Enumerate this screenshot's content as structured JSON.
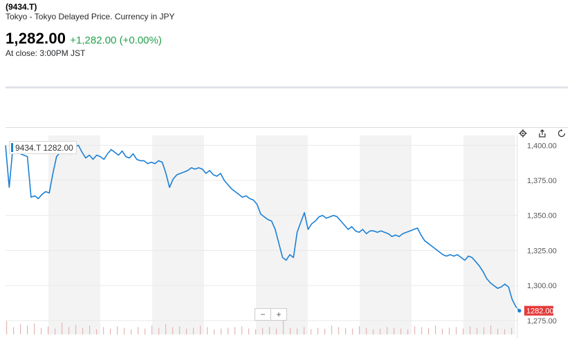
{
  "quote": {
    "ticker": "(9434.T)",
    "exchange_info": "Tokyo - Tokyo Delayed Price. Currency in JPY",
    "price": "1,282.00",
    "change": "+1,282.00 (+0.00%)",
    "close_time": "At close: 3:00PM JST"
  },
  "colors": {
    "line": "#1a7fd4",
    "change_positive": "#21a14a",
    "last_price_tag": "#e53b3b",
    "band": "#f3f3f3",
    "volume": "#e4b4b4"
  },
  "toolbar": {
    "icons": [
      "gear-icon",
      "share-icon",
      "reset-icon"
    ]
  },
  "zoom": {
    "minus": "−",
    "plus": "+"
  },
  "chart_data": {
    "type": "line",
    "series": [
      {
        "name": "9434.T",
        "legend_label": "9434.T 1282.00",
        "values": [
          1400,
          1370,
          1398,
          1397,
          1394,
          1393,
          1392,
          1363,
          1364,
          1362,
          1365,
          1367,
          1366,
          1380,
          1392,
          1395,
          1396,
          1398,
          1394,
          1399,
          1400,
          1395,
          1391,
          1393,
          1390,
          1393,
          1392,
          1390,
          1394,
          1397,
          1395,
          1393,
          1396,
          1392,
          1391,
          1394,
          1390,
          1389,
          1389,
          1387,
          1388,
          1387,
          1389,
          1388,
          1380,
          1370,
          1376,
          1379,
          1380,
          1381,
          1382,
          1384,
          1383,
          1384,
          1383,
          1380,
          1382,
          1379,
          1378,
          1380,
          1375,
          1372,
          1369,
          1367,
          1365,
          1363,
          1364,
          1362,
          1361,
          1358,
          1351,
          1349,
          1347,
          1346,
          1340,
          1330,
          1320,
          1318,
          1322,
          1320,
          1338,
          1345,
          1352,
          1340,
          1344,
          1346,
          1349,
          1350,
          1348,
          1349,
          1350,
          1349,
          1346,
          1343,
          1340,
          1342,
          1339,
          1338,
          1340,
          1337,
          1339,
          1339,
          1338,
          1339,
          1338,
          1337,
          1335,
          1336,
          1335,
          1337,
          1338,
          1339,
          1340,
          1341,
          1336,
          1332,
          1330,
          1328,
          1326,
          1324,
          1322,
          1321,
          1322,
          1321,
          1322,
          1320,
          1318,
          1321,
          1320,
          1317,
          1314,
          1310,
          1305,
          1302,
          1300,
          1298,
          1299,
          1301,
          1299,
          1290,
          1285,
          1282
        ]
      }
    ],
    "last_price_label": "1282.00",
    "y_ticks": [
      "1,400.00",
      "1,375.00",
      "1,350.00",
      "1,325.00",
      "1,300.00",
      "1,275.00"
    ],
    "y_tick_values": [
      1400,
      1375,
      1350,
      1325,
      1300,
      1275
    ],
    "ylim": [
      1270,
      1412
    ],
    "volume": [
      18,
      10,
      14,
      12,
      15,
      9,
      11,
      8,
      16,
      10,
      13,
      9,
      12,
      7,
      10,
      8,
      11,
      9,
      7,
      10,
      8,
      12,
      9,
      14,
      10,
      11,
      8,
      9,
      12,
      10,
      7,
      8,
      9,
      10,
      11,
      8,
      7,
      9,
      10,
      8,
      30,
      9,
      8,
      10,
      7,
      9,
      8,
      12,
      10,
      9,
      8,
      11,
      9,
      7,
      8,
      10,
      9,
      8,
      7,
      11,
      10,
      9,
      12,
      8,
      9,
      10,
      8,
      11,
      9,
      10,
      12,
      8,
      7,
      9
    ],
    "title": "",
    "xlabel": "",
    "ylabel": "",
    "grid": true
  }
}
